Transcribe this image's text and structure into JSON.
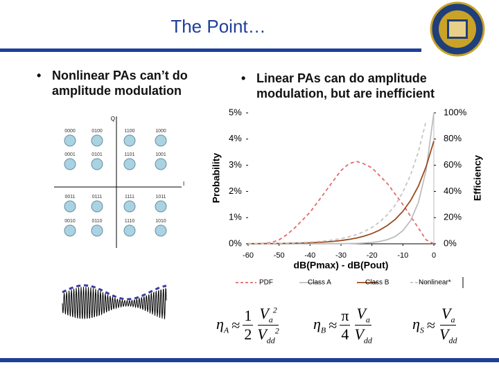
{
  "slide": {
    "title": "The Point…",
    "bullets": [
      "Nonlinear PAs can’t do amplitude modulation",
      "Linear PAs can do amplitude modulation, but are inefficient"
    ],
    "constellation": {
      "q_label": "Q",
      "i_label": "I",
      "labels": [
        [
          "0000",
          "0100",
          "1100",
          "1000"
        ],
        [
          "0001",
          "0101",
          "1101",
          "1001"
        ],
        [
          "0011",
          "0111",
          "1111",
          "1011"
        ],
        [
          "0010",
          "0110",
          "1110",
          "1010"
        ]
      ]
    },
    "equations": [
      {
        "symbol": "η",
        "sub": "A",
        "rel": "≈",
        "coef_num": "1",
        "coef_den": "2",
        "num": "V",
        "num_sub": "a",
        "num_sup": "2",
        "den": "V",
        "den_sub": "dd",
        "den_sup": "2"
      },
      {
        "symbol": "η",
        "sub": "B",
        "rel": "≈",
        "coef_num": "π",
        "coef_den": "4",
        "num": "V",
        "num_sub": "a",
        "den": "V",
        "den_sub": "dd"
      },
      {
        "symbol": "η",
        "sub": "S",
        "rel": "≈",
        "num": "V",
        "num_sub": "a",
        "den": "V",
        "den_sub": "dd"
      }
    ]
  },
  "chart_data": {
    "type": "line",
    "xlabel": "dB(Pmax) - dB(Pout)",
    "ylabel": "Probability",
    "y2label": "Efficiency",
    "x": [
      -60,
      -57.5,
      -55,
      -52.5,
      -50,
      -47.5,
      -45,
      -42.5,
      -40,
      -37.5,
      -35,
      -32.5,
      -30,
      -27.5,
      -25,
      -22.5,
      -20,
      -17.5,
      -15,
      -12.5,
      -10,
      -7.5,
      -5,
      -2.5,
      0
    ],
    "xlim": [
      -60,
      0
    ],
    "xticks": [
      -60,
      -50,
      -40,
      -30,
      -20,
      -10,
      0
    ],
    "ylim": [
      0,
      5
    ],
    "yticks": [
      {
        "value": 0,
        "label": "0%"
      },
      {
        "value": 1,
        "label": "1%"
      },
      {
        "value": 2,
        "label": "2%"
      },
      {
        "value": 3,
        "label": "3%"
      },
      {
        "value": 4,
        "label": "4%"
      },
      {
        "value": 5,
        "label": "5%"
      }
    ],
    "y2lim": [
      0,
      100
    ],
    "y2ticks": [
      {
        "value": 0,
        "label": "0%"
      },
      {
        "value": 20,
        "label": "20%"
      },
      {
        "value": 40,
        "label": "40%"
      },
      {
        "value": 60,
        "label": "60%"
      },
      {
        "value": 80,
        "label": "80%"
      },
      {
        "value": 100,
        "label": "100%"
      }
    ],
    "series": [
      {
        "name": "PDF",
        "color": "#e06a6a",
        "dash": true,
        "values": [
          0,
          0,
          0.02,
          0.05,
          0.15,
          0.35,
          0.6,
          0.9,
          1.2,
          1.6,
          2.0,
          2.4,
          2.8,
          3.05,
          3.15,
          3.05,
          2.9,
          2.6,
          2.3,
          1.9,
          1.5,
          1.05,
          0.6,
          0.15,
          0
        ]
      },
      {
        "name": "Class A",
        "color": "#bdbdbd",
        "dash": false,
        "axis": "y2",
        "values": [
          0,
          0,
          0,
          0,
          0,
          0,
          0,
          0,
          0,
          0,
          0,
          0.1,
          0.1,
          0.2,
          0.3,
          0.6,
          1.0,
          1.8,
          3.2,
          5.6,
          10,
          17.8,
          31.6,
          56.2,
          100
        ]
      },
      {
        "name": "Class B",
        "color": "#9a4a1c",
        "dash": false,
        "axis": "y2",
        "values": [
          0.08,
          0.1,
          0.14,
          0.19,
          0.25,
          0.33,
          0.44,
          0.59,
          0.79,
          1.05,
          1.4,
          1.87,
          2.48,
          3.31,
          4.41,
          5.89,
          7.85,
          10.5,
          14,
          18.6,
          24.8,
          33.1,
          44.1,
          58.9,
          78.5
        ]
      },
      {
        "name": "Nonlinear*",
        "color": "#c4c4c4",
        "dash": true,
        "axis": "y2",
        "values": [
          0.13,
          0.17,
          0.22,
          0.3,
          0.4,
          0.53,
          0.7,
          0.94,
          1.25,
          1.67,
          2.22,
          2.97,
          3.95,
          5.27,
          7.03,
          9.37,
          12.5,
          16.7,
          22.2,
          29.6,
          39.5,
          52.7,
          70.3,
          93.7,
          null
        ]
      }
    ]
  }
}
